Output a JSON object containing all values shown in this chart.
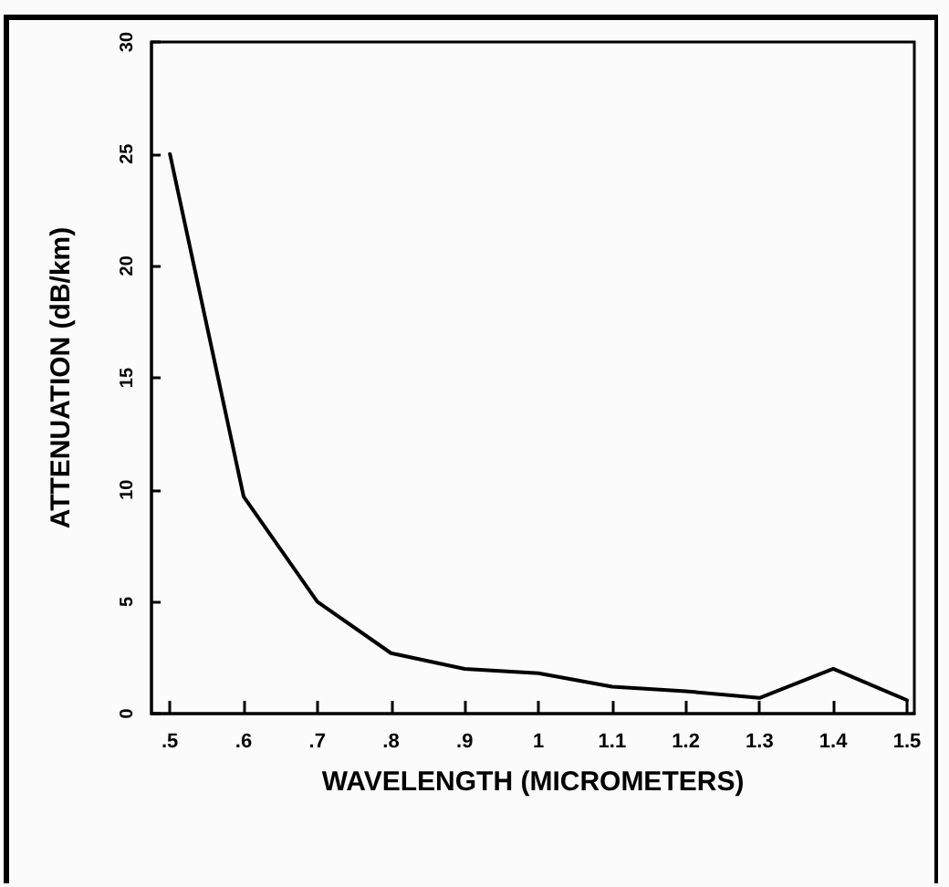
{
  "chart_data": {
    "type": "line",
    "xlabel": "WAVELENGTH (MICROMETERS)",
    "ylabel": "ATTENUATION (dB/km)",
    "x": [
      0.5,
      0.6,
      0.7,
      0.8,
      0.9,
      1.0,
      1.1,
      1.2,
      1.3,
      1.4,
      1.5
    ],
    "series": [
      {
        "color": "#000000",
        "values": [
          25,
          9.7,
          5.0,
          2.7,
          2.0,
          1.8,
          1.2,
          1.0,
          0.7,
          2.0,
          0.6
        ]
      }
    ],
    "xlim": [
      0.475,
      1.51
    ],
    "xticks": [
      {
        "value": 0.5,
        "label": ".5"
      },
      {
        "value": 0.6,
        "label": ".6"
      },
      {
        "value": 0.7,
        "label": ".7"
      },
      {
        "value": 0.8,
        "label": ".8"
      },
      {
        "value": 0.9,
        "label": ".9"
      },
      1,
      1.1,
      1.2,
      1.3,
      1.4,
      1.5
    ],
    "ylim": [
      0,
      30
    ],
    "yticks": [
      0,
      5,
      10,
      15,
      20,
      25,
      30
    ],
    "grid": false,
    "marker": "none",
    "line_style": "solid"
  }
}
